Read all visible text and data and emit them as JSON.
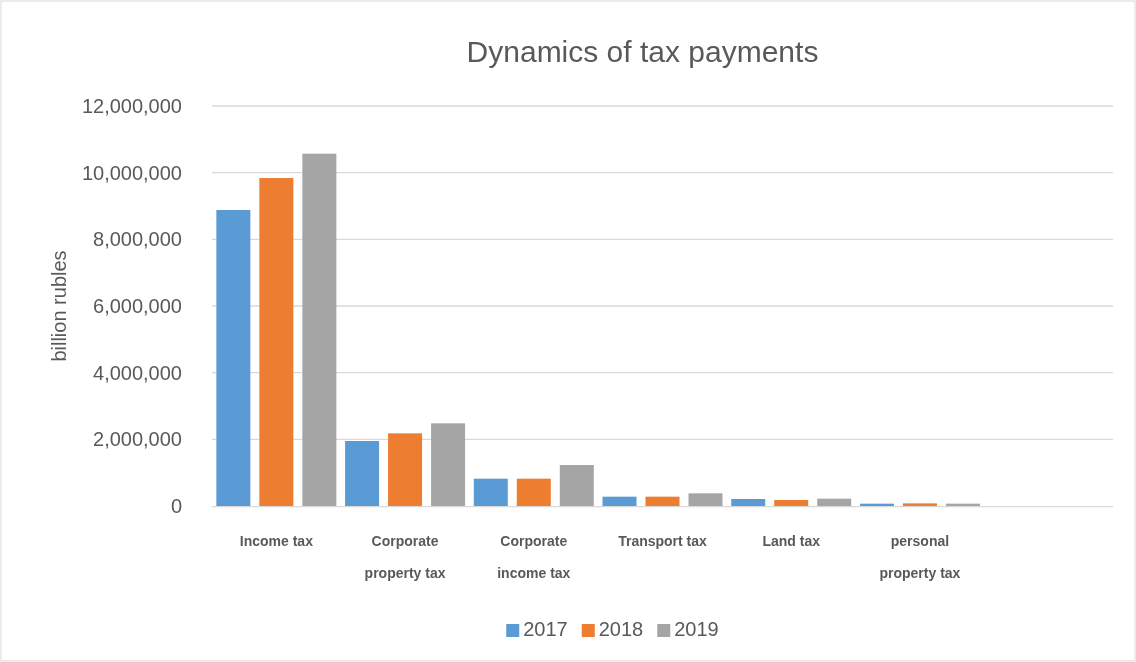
{
  "chart_data": {
    "type": "bar",
    "title": "Dynamics of tax payments",
    "ylabel": "billion rubles",
    "categories": [
      "Income tax",
      "Corporate property tax",
      "Corporate income tax",
      "Transport tax",
      "Land tax",
      "personal property tax",
      null
    ],
    "series": [
      {
        "name": "2017",
        "color": "#5b9bd5",
        "values": [
          8880000,
          1950000,
          820000,
          280000,
          210000,
          70000,
          null
        ]
      },
      {
        "name": "2018",
        "color": "#ed7d31",
        "values": [
          9840000,
          2180000,
          820000,
          280000,
          180000,
          80000,
          null
        ]
      },
      {
        "name": "2019",
        "color": "#a5a5a5",
        "values": [
          10570000,
          2480000,
          1230000,
          380000,
          220000,
          70000,
          null
        ]
      }
    ],
    "ylim": [
      0,
      12000000
    ],
    "yticks": [
      {
        "value": 0,
        "label": "0"
      },
      {
        "value": 2000000,
        "label": "2,000,000"
      },
      {
        "value": 4000000,
        "label": "4,000,000"
      },
      {
        "value": 6000000,
        "label": "6,000,000"
      },
      {
        "value": 8000000,
        "label": "8,000,000"
      },
      {
        "value": 10000000,
        "label": "10,000,000"
      },
      {
        "value": 12000000,
        "label": "12,000,000"
      }
    ],
    "grid": "y",
    "legend": "bottom"
  }
}
